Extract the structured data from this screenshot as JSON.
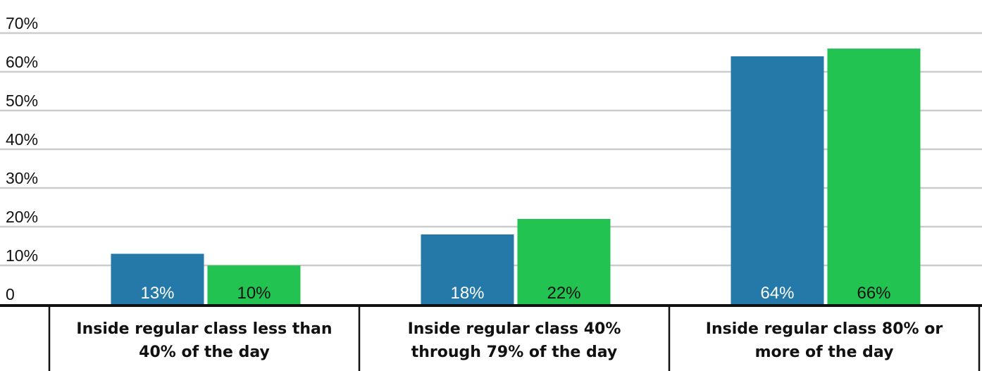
{
  "chart_data": {
    "type": "bar",
    "categories": [
      [
        "Inside regular class less than",
        "40% of the day"
      ],
      [
        "Inside regular class 40%",
        "through 79% of the day"
      ],
      [
        "Inside regular class 80% or",
        "more of the day"
      ]
    ],
    "series": [
      {
        "values": [
          13,
          18,
          64
        ],
        "labels": [
          "13%",
          "18%",
          "64%"
        ],
        "color": "#2479a8",
        "label_color": "#ffffff"
      },
      {
        "values": [
          10,
          22,
          66
        ],
        "labels": [
          "10%",
          "22%",
          "66%"
        ],
        "color": "#22c350",
        "label_color": "#111111"
      }
    ],
    "ylim": [
      0,
      70
    ],
    "yticks": [
      {
        "value": 0,
        "label": "0"
      },
      {
        "value": 10,
        "label": "10%"
      },
      {
        "value": 20,
        "label": "20%"
      },
      {
        "value": 30,
        "label": "30%"
      },
      {
        "value": 40,
        "label": "40%"
      },
      {
        "value": 50,
        "label": "50%"
      },
      {
        "value": 60,
        "label": "60%"
      },
      {
        "value": 70,
        "label": "70%"
      }
    ],
    "grid": true,
    "gridline_color": "#cccccc",
    "axis_color": "#111111"
  }
}
